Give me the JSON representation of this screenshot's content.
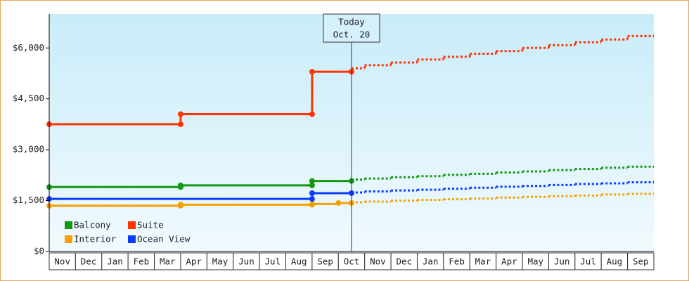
{
  "chart_data": {
    "type": "step",
    "annotation": {
      "title": "Today",
      "date": "Oct. 20"
    },
    "categories": [
      "Nov",
      "Dec",
      "Jan",
      "Feb",
      "Mar",
      "Apr",
      "May",
      "Jun",
      "Jul",
      "Aug",
      "Sep",
      "Oct",
      "Nov",
      "Dec",
      "Jan",
      "Feb",
      "Mar",
      "Apr",
      "May",
      "Jun",
      "Jul",
      "Aug",
      "Sep"
    ],
    "series": [
      {
        "name": "Balcony",
        "color": "#119911",
        "values": [
          1900,
          1900,
          1900,
          1900,
          1900,
          1950,
          1950,
          1950,
          1950,
          1950,
          2080,
          2080,
          null,
          null,
          null,
          null,
          null,
          null,
          null,
          null,
          null,
          null,
          null
        ],
        "forecast": [
          null,
          null,
          null,
          null,
          null,
          null,
          null,
          null,
          null,
          null,
          null,
          2120,
          2150,
          2190,
          2220,
          2260,
          2290,
          2330,
          2360,
          2400,
          2430,
          2470,
          2500
        ]
      },
      {
        "name": "Suite",
        "color": "#ff3300",
        "values": [
          3750,
          3750,
          3750,
          3750,
          3750,
          4050,
          4050,
          4050,
          4050,
          4050,
          5300,
          5300,
          null,
          null,
          null,
          null,
          null,
          null,
          null,
          null,
          null,
          null,
          null
        ],
        "forecast": [
          null,
          null,
          null,
          null,
          null,
          null,
          null,
          null,
          null,
          null,
          null,
          5400,
          5490,
          5570,
          5660,
          5740,
          5830,
          5910,
          6000,
          6080,
          6170,
          6250,
          6350
        ]
      },
      {
        "name": "Interior",
        "color": "#f5a000",
        "values": [
          1350,
          1350,
          1350,
          1350,
          1350,
          1380,
          1380,
          1380,
          1380,
          1380,
          1400,
          1430,
          null,
          null,
          null,
          null,
          null,
          null,
          null,
          null,
          null,
          null,
          null
        ],
        "forecast": [
          null,
          null,
          null,
          null,
          null,
          null,
          null,
          null,
          null,
          null,
          null,
          1450,
          1470,
          1500,
          1520,
          1540,
          1560,
          1590,
          1610,
          1630,
          1650,
          1680,
          1700
        ]
      },
      {
        "name": "Ocean View",
        "color": "#0a3cff",
        "values": [
          1550,
          1550,
          1550,
          1550,
          1550,
          1550,
          1550,
          1550,
          1550,
          1550,
          1720,
          1720,
          null,
          null,
          null,
          null,
          null,
          null,
          null,
          null,
          null,
          null,
          null
        ],
        "forecast": [
          null,
          null,
          null,
          null,
          null,
          null,
          null,
          null,
          null,
          null,
          null,
          1740,
          1770,
          1800,
          1820,
          1850,
          1880,
          1910,
          1930,
          1960,
          1990,
          2010,
          2040
        ]
      }
    ],
    "ylim": [
      0,
      7000
    ],
    "yticks": [
      {
        "value": 0,
        "label": "$0"
      },
      {
        "value": 1500,
        "label": "$1,500"
      },
      {
        "value": 3000,
        "label": "$3,000"
      },
      {
        "value": 4500,
        "label": "$4,500"
      },
      {
        "value": 6000,
        "label": "$6,000"
      }
    ],
    "legend": "lower-left"
  }
}
